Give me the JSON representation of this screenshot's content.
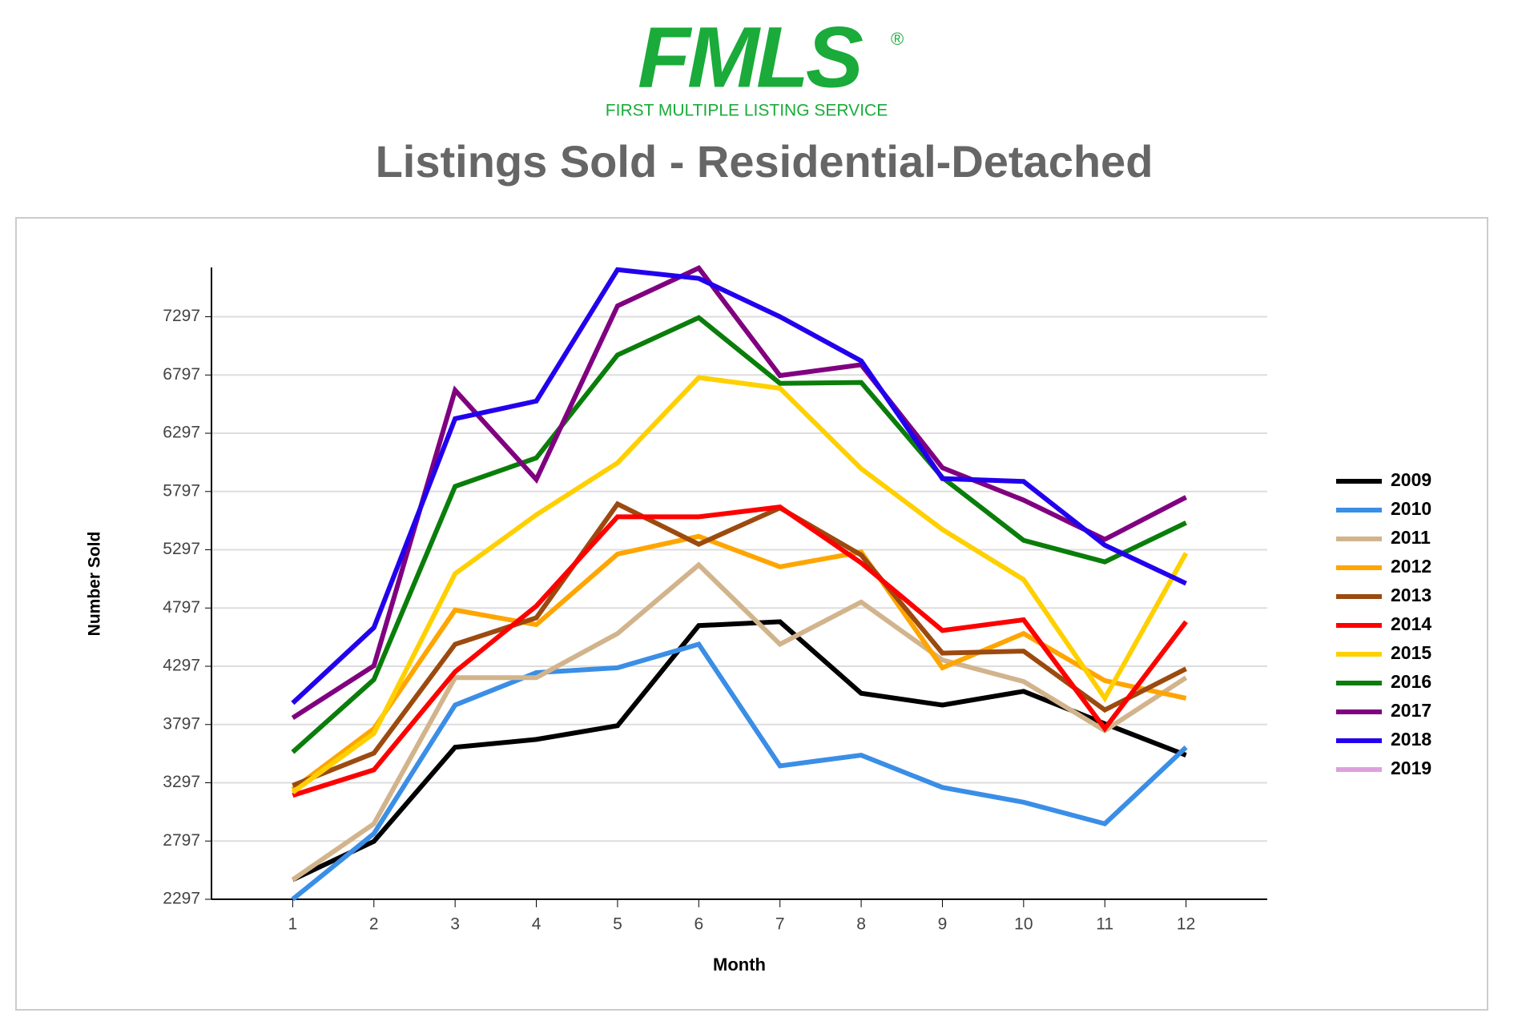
{
  "logo": {
    "text": "FMLS",
    "mark": "®",
    "subtitle": "FIRST MULTIPLE LISTING SERVICE"
  },
  "chart_data": {
    "type": "line",
    "title": "Listings Sold - Residential-Detached",
    "xlabel": "Month",
    "ylabel": "Number Sold",
    "x": [
      1,
      2,
      3,
      4,
      5,
      6,
      7,
      8,
      9,
      10,
      11,
      12
    ],
    "xlim": [
      0,
      13
    ],
    "xticks": [
      1,
      2,
      3,
      4,
      5,
      6,
      7,
      8,
      9,
      10,
      11,
      12
    ],
    "ylim": [
      2297,
      7720
    ],
    "yticks": [
      2297,
      2797,
      3297,
      3797,
      4297,
      4797,
      5297,
      5797,
      6297,
      6797,
      7297
    ],
    "grid": true,
    "legend": "right",
    "series": [
      {
        "name": "2009",
        "color": "#000000",
        "values": [
          2465,
          2794,
          3602,
          3669,
          3787,
          4646,
          4679,
          4065,
          3964,
          4082,
          3804,
          3534
        ]
      },
      {
        "name": "2010",
        "color": "#3a8ee6",
        "values": [
          2297,
          2861,
          3964,
          4242,
          4284,
          4486,
          3442,
          3534,
          3257,
          3130,
          2945,
          3602
        ]
      },
      {
        "name": "2011",
        "color": "#d2b48c",
        "values": [
          2465,
          2945,
          4199,
          4199,
          4578,
          5167,
          4486,
          4848,
          4351,
          4166,
          3745,
          4199
        ]
      },
      {
        "name": "2012",
        "color": "#ffa500",
        "values": [
          3240,
          3762,
          4780,
          4654,
          5260,
          5412,
          5151,
          5277,
          4284,
          4578,
          4174,
          4023
        ]
      },
      {
        "name": "2013",
        "color": "#9c4a0f",
        "values": [
          3274,
          3551,
          4486,
          4713,
          5690,
          5344,
          5656,
          5252,
          4410,
          4427,
          3922,
          4275
        ]
      },
      {
        "name": "2014",
        "color": "#ff0000",
        "values": [
          3189,
          3408,
          4250,
          4814,
          5580,
          5580,
          5664,
          5184,
          4604,
          4696,
          3762,
          4679
        ]
      },
      {
        "name": "2015",
        "color": "#ffd000",
        "values": [
          3215,
          3720,
          5092,
          5597,
          6043,
          6775,
          6683,
          5993,
          5471,
          5041,
          4023,
          5268
        ]
      },
      {
        "name": "2016",
        "color": "#0a7d0a",
        "values": [
          3560,
          4183,
          5841,
          6085,
          6969,
          7289,
          6725,
          6733,
          5917,
          5378,
          5193,
          5529
        ]
      },
      {
        "name": "2017",
        "color": "#800080",
        "values": [
          3854,
          4301,
          6666,
          5900,
          7390,
          7715,
          6792,
          6885,
          6001,
          5723,
          5386,
          5748
        ]
      },
      {
        "name": "2018",
        "color": "#2200ee",
        "values": [
          3981,
          4629,
          6422,
          6573,
          7701,
          7626,
          7297,
          6918,
          5908,
          5883,
          5336,
          5008
        ]
      },
      {
        "name": "2019",
        "color": "#dda0dd",
        "values": [
          null,
          null,
          null,
          null,
          null,
          null,
          null,
          null,
          null,
          null,
          null,
          null
        ]
      }
    ]
  }
}
